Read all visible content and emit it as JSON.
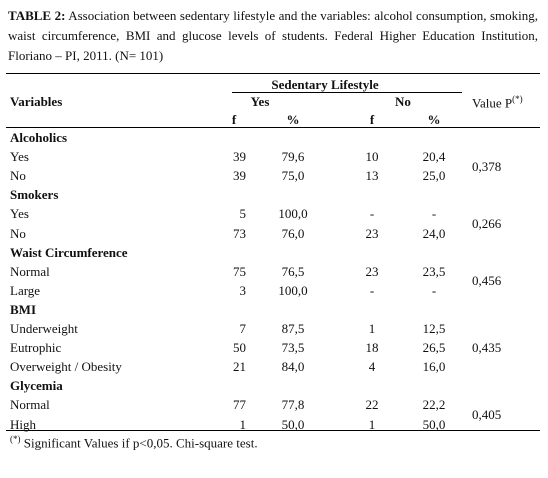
{
  "caption": {
    "label": "TABLE 2:",
    "text": "Association between sedentary lifestyle and the variables: alcohol consumption, smoking, waist circumference, BMI and glucose levels of students. Federal Higher Education Institution, Floriano – PI, 2011. (N= 101)"
  },
  "table": {
    "group_header": "Sedentary Lifestyle",
    "columns": {
      "variables": "Variables",
      "yes": "Yes",
      "no": "No",
      "value_p": "Value P",
      "value_p_mark": "(*)"
    },
    "subheaders": [
      "f",
      "%",
      "f",
      "%"
    ],
    "groups": [
      {
        "title": "Alcoholics",
        "p": "0,378",
        "rows": [
          [
            "Yes",
            "39",
            "79,6",
            "10",
            "20,4"
          ],
          [
            "No",
            "39",
            "75,0",
            "13",
            "25,0"
          ]
        ]
      },
      {
        "title": "Smokers",
        "p": "0,266",
        "rows": [
          [
            "Yes",
            "5",
            "100,0",
            "-",
            "-"
          ],
          [
            "No",
            "73",
            "76,0",
            "23",
            "24,0"
          ]
        ]
      },
      {
        "title": "Waist Circumference",
        "p": "0,456",
        "rows": [
          [
            "Normal",
            "75",
            "76,5",
            "23",
            "23,5"
          ],
          [
            "Large",
            "3",
            "100,0",
            "-",
            "-"
          ]
        ]
      },
      {
        "title": "BMI",
        "p": "0,435",
        "rows": [
          [
            "Underweight",
            "7",
            "87,5",
            "1",
            "12,5"
          ],
          [
            "Eutrophic",
            "50",
            "73,5",
            "18",
            "26,5"
          ],
          [
            "Overweight / Obesity",
            "21",
            "84,0",
            "4",
            "16,0"
          ]
        ]
      },
      {
        "title": "Glycemia",
        "p": "0,405",
        "rows": [
          [
            "Normal",
            "77",
            "77,8",
            "22",
            "22,2"
          ],
          [
            "High",
            "1",
            "50,0",
            "1",
            "50,0"
          ]
        ]
      }
    ]
  },
  "footnote": {
    "mark": "(*)",
    "text": "Significant Values if p<0,05. Chi-square test."
  }
}
